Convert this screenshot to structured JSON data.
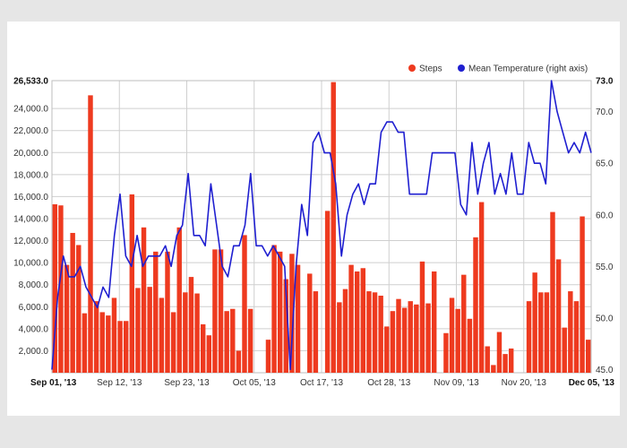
{
  "chart_data": {
    "type": "bar+line",
    "title": "",
    "legend": [
      {
        "name": "Steps",
        "color": "#ee3a1f",
        "marker": "circle"
      },
      {
        "name": "Mean Temperature (right axis)",
        "color": "#1f1fd0",
        "marker": "circle"
      }
    ],
    "legend_position": "top-right",
    "grid": true,
    "x_range": [
      "Sep 01, '13",
      "Dec 05, '13"
    ],
    "x_ticks": [
      "Sep 01, '13",
      "Sep 12, '13",
      "Sep 23, '13",
      "Oct 05, '13",
      "Oct 17, '13",
      "Oct 28, '13",
      "Nov 09, '13",
      "Nov 20, '13",
      "Dec 05, '13"
    ],
    "x_tick_bold": [
      true,
      false,
      false,
      false,
      false,
      false,
      false,
      false,
      true
    ],
    "y_left": {
      "range": [
        0,
        26533
      ],
      "ticks": [
        "2,000.0",
        "4,000.0",
        "6,000.0",
        "8,000.0",
        "10,000.0",
        "12,000.0",
        "14,000.0",
        "16,000.0",
        "18,000.0",
        "20,000.0",
        "22,000.0",
        "24,000.0",
        "26,533.0"
      ],
      "tick_values": [
        2000,
        4000,
        6000,
        8000,
        10000,
        12000,
        14000,
        16000,
        18000,
        20000,
        22000,
        24000,
        26533
      ]
    },
    "y_right": {
      "range": [
        44.7,
        73
      ],
      "ticks": [
        "45.0",
        "50.0",
        "55.0",
        "60.0",
        "65.0",
        "70.0",
        "73.0"
      ],
      "tick_values": [
        45,
        50,
        55,
        60,
        65,
        70,
        73
      ]
    },
    "series": [
      {
        "name": "Steps",
        "axis": "left",
        "values": [
          15300,
          15200,
          9800,
          12700,
          11600,
          5400,
          25200,
          6500,
          5500,
          5200,
          6800,
          4700,
          4700,
          16200,
          7700,
          13200,
          7800,
          11000,
          6800,
          11000,
          5500,
          13200,
          7300,
          8700,
          7200,
          4400,
          3400,
          11200,
          11200,
          5600,
          5800,
          2000,
          12500,
          5800,
          0,
          0,
          3000,
          11600,
          11000,
          8500,
          10800,
          9800,
          0,
          9000,
          7400,
          0,
          14700,
          26400,
          6400,
          7600,
          9800,
          9200,
          9500,
          7400,
          7300,
          7000,
          4200,
          5600,
          6700,
          5900,
          6500,
          6200,
          10100,
          6300,
          9200,
          0,
          3600,
          6800,
          5800,
          8900,
          4900,
          12300,
          15500,
          2400,
          700,
          3700,
          1700,
          2200,
          0,
          0,
          6500,
          9100,
          7300,
          7300,
          14600,
          10300,
          4100,
          7400,
          6500,
          14200,
          3000
        ]
      },
      {
        "name": "Mean Temperature (right axis)",
        "axis": "left_independent",
        "values": [
          45,
          52,
          56,
          54,
          54,
          55,
          53,
          52,
          51,
          53,
          52,
          58,
          62,
          56,
          55,
          58,
          55,
          56,
          56,
          56,
          57,
          55,
          58,
          59,
          64,
          58,
          58,
          57,
          63,
          59,
          55,
          54,
          57,
          57,
          59,
          64,
          57,
          57,
          56,
          57,
          56,
          55,
          45,
          55,
          61,
          58,
          67,
          68,
          66,
          66,
          63,
          56,
          60,
          62,
          63,
          61,
          63,
          63,
          68,
          69,
          69,
          68,
          68,
          62,
          62,
          62,
          62,
          66,
          66,
          66,
          66,
          66,
          61,
          60,
          67,
          62,
          65,
          67,
          62,
          64,
          62,
          66,
          62,
          62,
          67,
          65,
          65,
          63,
          73,
          70,
          68,
          66,
          67,
          66,
          68,
          66
        ]
      }
    ]
  }
}
